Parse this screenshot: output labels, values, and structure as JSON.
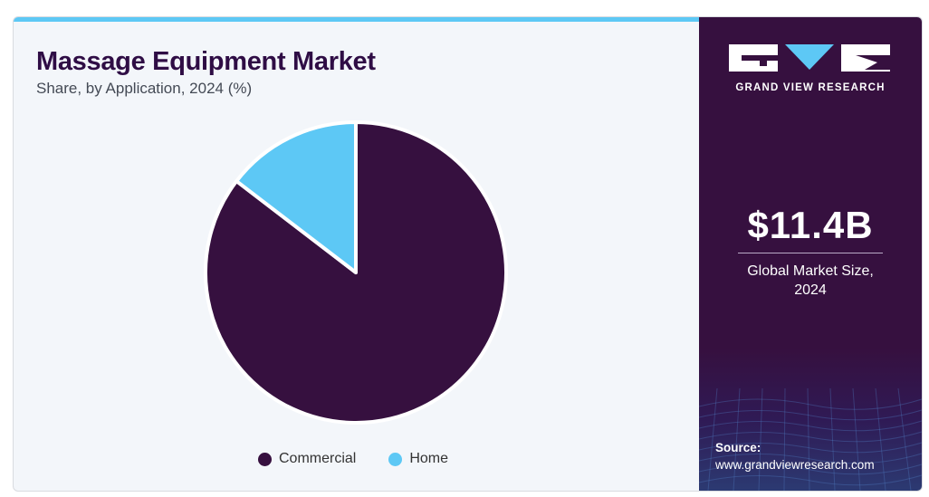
{
  "header": {
    "title": "Massage Equipment Market",
    "subtitle": "Share, by Application, 2024 (%)"
  },
  "chart_data": {
    "type": "pie",
    "title": "Massage Equipment Market",
    "subtitle": "Share, by Application, 2024 (%)",
    "categories": [
      "Commercial",
      "Home"
    ],
    "values": [
      85.4,
      14.6
    ],
    "colors": [
      "#36103f",
      "#5dc8f5"
    ],
    "start_angle_deg": 0,
    "direction": "clockwise",
    "legend": "bottom"
  },
  "sidebar": {
    "brand": "GRAND VIEW RESEARCH",
    "market_size": "$11.4B",
    "market_size_caption_line1": "Global Market Size,",
    "market_size_caption_line2": "2024",
    "source_label": "Source:",
    "source_url": "www.grandviewresearch.com"
  },
  "colors": {
    "accent": "#5dc8f5",
    "dark_purple": "#36103f",
    "background": "#f3f6fa"
  },
  "icons": {
    "logo": "gvr-logo-icon"
  }
}
